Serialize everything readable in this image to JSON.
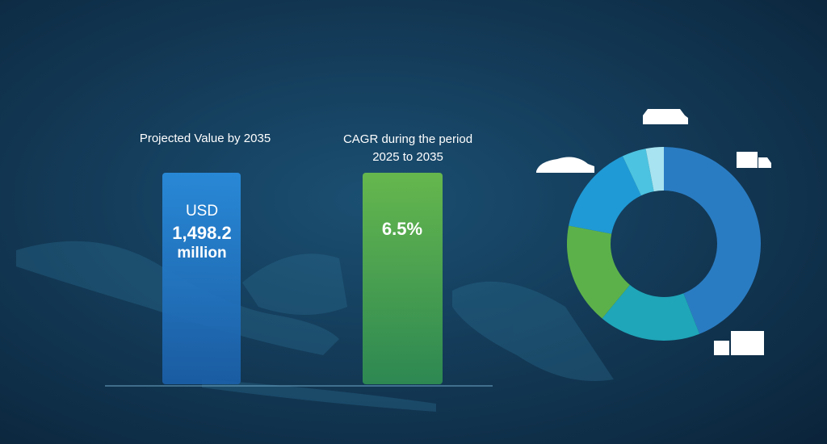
{
  "panels": [
    {
      "heading": "Projected Value by 2035",
      "lines": [
        "USD",
        "1,498.2",
        "million"
      ]
    },
    {
      "heading_lines": [
        "CAGR during the period",
        "2025 to 2035"
      ],
      "value": "6.5%"
    }
  ],
  "donut": {
    "segments": [
      {
        "value": 44,
        "color": "#2a7cc2"
      },
      {
        "value": 17,
        "color": "#1fa6b8"
      },
      {
        "value": 17,
        "color": "#5db14a"
      },
      {
        "value": 15,
        "color": "#1f9ad6"
      },
      {
        "value": 4,
        "color": "#4cc3e0"
      },
      {
        "value": 3,
        "color": "#a7e3f0"
      }
    ]
  }
}
